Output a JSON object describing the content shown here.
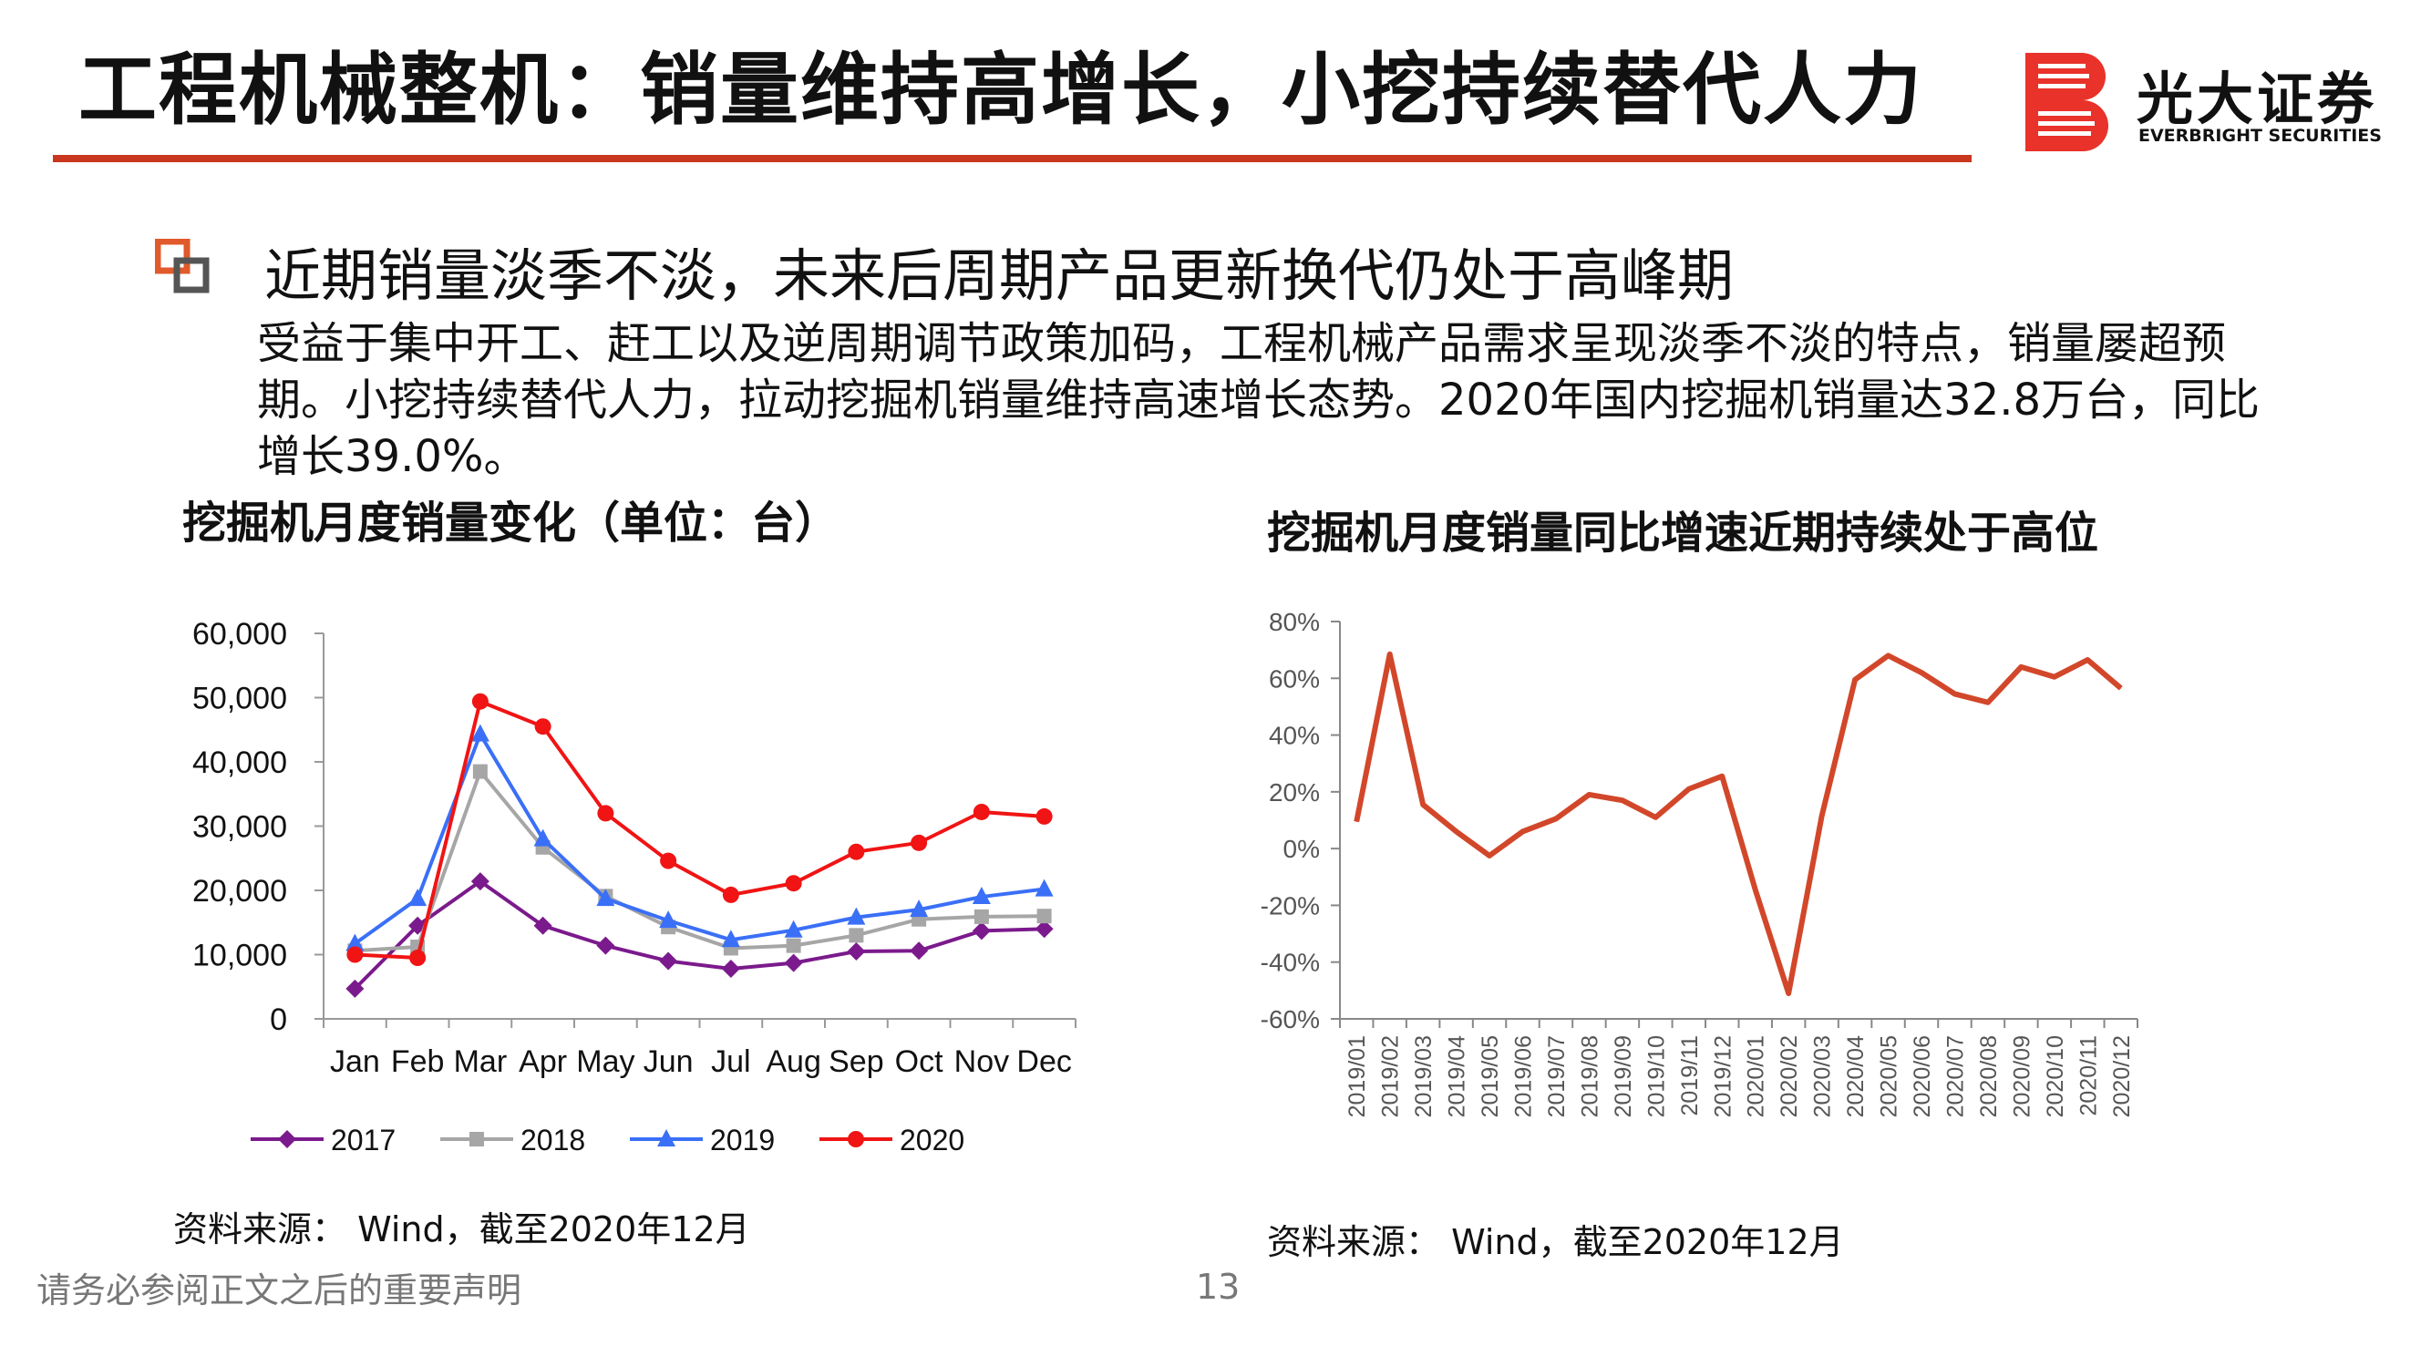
{
  "slide": {
    "title": "工程机械整机：销量维持高增长，小挖持续替代人力",
    "accent_color": "#c9371e"
  },
  "logo": {
    "name_cn": "光大证券",
    "name_en": "EVERBRIGHT SECURITIES",
    "mark_icon": "everbright-b-logo-icon",
    "mark_color": "#e8322a"
  },
  "bullet": {
    "icon": "square-bullet-icon",
    "heading": "近期销量淡季不淡，未来后周期产品更新换代仍处于高峰期",
    "text": "受益于集中开工、赶工以及逆周期调节政策加码，工程机械产品需求呈现淡季不淡的特点，销量屡超预期。小挖持续替代人力，拉动挖掘机销量维持高速增长态势。2020年国内挖掘机销量达32.8万台，同比增长39.0%。"
  },
  "chart_data": [
    {
      "type": "line",
      "title": "挖掘机月度销量变化（单位：台）",
      "categories": [
        "Jan",
        "Feb",
        "Mar",
        "Apr",
        "May",
        "Jun",
        "Jul",
        "Aug",
        "Sep",
        "Oct",
        "Nov",
        "Dec"
      ],
      "ylim": [
        0,
        60000
      ],
      "yticks": [
        0,
        10000,
        20000,
        30000,
        40000,
        50000,
        60000
      ],
      "ytick_labels": [
        "0",
        "10,000",
        "20,000",
        "30,000",
        "40,000",
        "50,000",
        "60,000"
      ],
      "legend_position": "bottom",
      "grid": false,
      "series": [
        {
          "name": "2017",
          "color": "#7b1a8c",
          "marker": "diamond",
          "values": [
            4700,
            14500,
            21400,
            14500,
            11400,
            9000,
            7800,
            8700,
            10500,
            10600,
            13700,
            14000
          ]
        },
        {
          "name": "2018",
          "color": "#a6a6a6",
          "marker": "square",
          "values": [
            10600,
            11200,
            38500,
            26700,
            19100,
            14300,
            11000,
            11400,
            13000,
            15500,
            15900,
            16000
          ]
        },
        {
          "name": "2019",
          "color": "#3a6ff7",
          "marker": "triangle",
          "values": [
            11700,
            18700,
            44300,
            28000,
            18700,
            15300,
            12300,
            13800,
            15800,
            17000,
            19000,
            20200
          ]
        },
        {
          "name": "2020",
          "color": "#f01414",
          "marker": "circle",
          "values": [
            10000,
            9500,
            49400,
            45500,
            32000,
            24600,
            19300,
            21100,
            26000,
            27400,
            32200,
            31500
          ]
        }
      ],
      "source": "资料来源： Wind，截至2020年12月"
    },
    {
      "type": "line",
      "title": "挖掘机月度销量同比增速近期持续处于高位",
      "categories": [
        "2019/01",
        "2019/02",
        "2019/03",
        "2019/04",
        "2019/05",
        "2019/06",
        "2019/07",
        "2019/08",
        "2019/09",
        "2019/10",
        "2019/11",
        "2019/12",
        "2020/01",
        "2020/02",
        "2020/03",
        "2020/04",
        "2020/05",
        "2020/06",
        "2020/07",
        "2020/08",
        "2020/09",
        "2020/10",
        "2020/11",
        "2020/12"
      ],
      "ylim": [
        -0.6,
        0.8
      ],
      "yticks": [
        -0.6,
        -0.4,
        -0.2,
        0,
        0.2,
        0.4,
        0.6,
        0.8
      ],
      "ytick_labels": [
        "-60%",
        "-40%",
        "-20%",
        "0%",
        "20%",
        "40%",
        "60%",
        "80%"
      ],
      "grid": false,
      "series": [
        {
          "color": "#d2472a",
          "values": [
            0.095,
            0.685,
            0.155,
            0.06,
            -0.025,
            0.06,
            0.105,
            0.19,
            0.17,
            0.11,
            0.21,
            0.255,
            -0.145,
            -0.51,
            0.115,
            0.595,
            0.68,
            0.62,
            0.545,
            0.515,
            0.64,
            0.605,
            0.665,
            0.565
          ]
        }
      ],
      "source": "资料来源： Wind，截至2020年12月"
    }
  ],
  "footer": {
    "disclaimer": "请务必参阅正文之后的重要声明",
    "page_number": "13"
  }
}
